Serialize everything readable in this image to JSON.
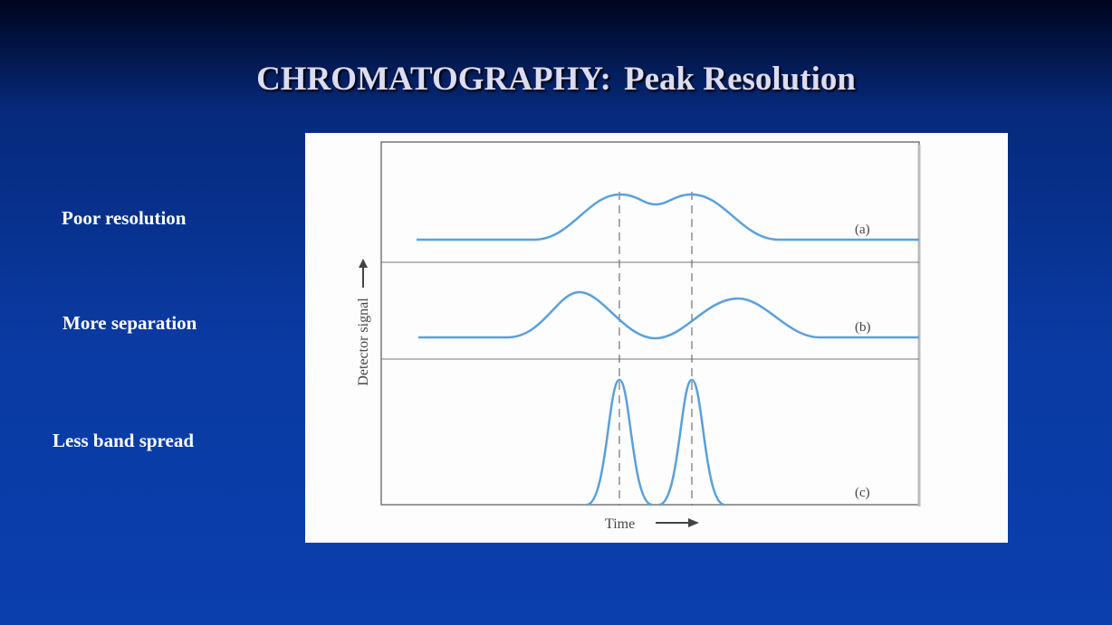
{
  "slide": {
    "title": {
      "main": "CHROMATOGRAPHY:",
      "sub": "Peak Resolution"
    },
    "labels": [
      "Poor resolution",
      "More separation",
      "Less band spread"
    ]
  },
  "figure": {
    "y_axis_label": "Detector signal",
    "x_axis_label": "Time",
    "panels": [
      "(a)",
      "(b)",
      "(c)"
    ]
  }
}
